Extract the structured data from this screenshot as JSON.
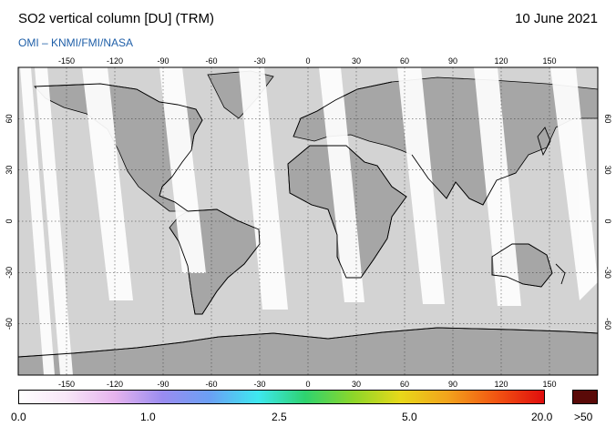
{
  "header": {
    "title": "SO2 vertical column [DU] (TRM)",
    "date": "10 June 2021",
    "credit": "OMI  –  KNMI/FMI/NASA"
  },
  "map": {
    "projection": "equirectangular",
    "lon_range": [
      -180,
      180
    ],
    "lat_range": [
      -90,
      90
    ],
    "lon_ticks": [
      "-150",
      "-120",
      "-90",
      "-60",
      "-30",
      "0",
      "30",
      "60",
      "90",
      "120",
      "150"
    ],
    "lat_ticks": [
      "60",
      "30",
      "0",
      "-30",
      "-60"
    ],
    "colors": {
      "no_data_white": "#ffffff",
      "land_gray": "#a6a6a6",
      "ocean_gray": "#d3d3d3",
      "coastline": "#000000"
    }
  },
  "colorbar": {
    "labels": [
      "0.0",
      "1.0",
      "2.5",
      "5.0",
      "20.0"
    ],
    "over_label": ">50",
    "gradient": [
      "#ffffff",
      "#f7e6f7",
      "#e6b3ee",
      "#9a8cf0",
      "#6aa0f5",
      "#3ee8f0",
      "#2ed36f",
      "#8cd62a",
      "#e8d81a",
      "#f2a21c",
      "#f25512",
      "#e00d0d"
    ],
    "over_color": "#5a0a08"
  }
}
